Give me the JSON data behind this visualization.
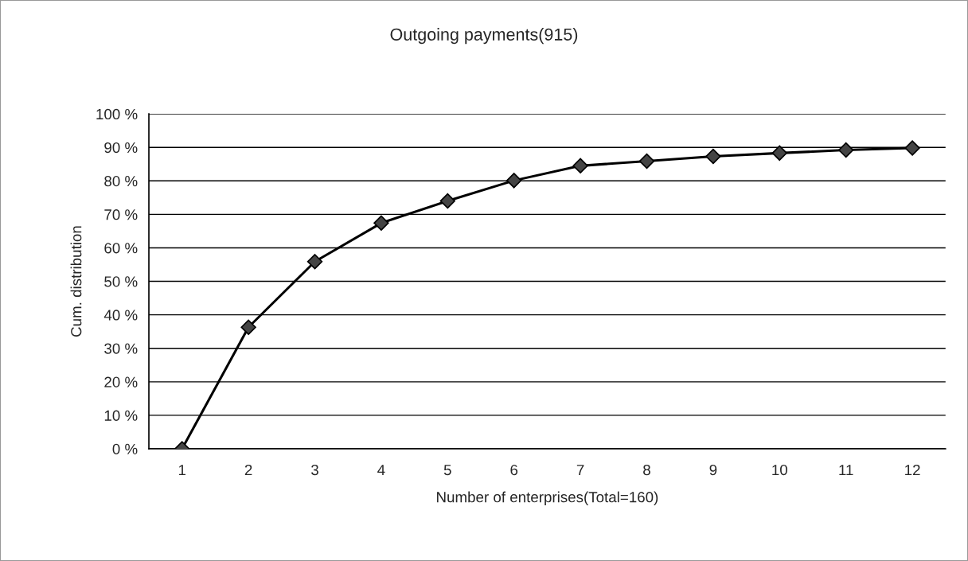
{
  "chart_data": {
    "type": "line",
    "title": "Outgoing payments(915)",
    "xlabel": "Number of enterprises(Total=160)",
    "ylabel": "Cum. distribution",
    "categories": [
      "1",
      "2",
      "3",
      "4",
      "5",
      "6",
      "7",
      "8",
      "9",
      "10",
      "11",
      "12"
    ],
    "series": [
      {
        "color": "#000000",
        "values": [
          0,
          36.3,
          55.9,
          67.4,
          74.0,
          80.1,
          84.5,
          85.9,
          87.3,
          88.3,
          89.2,
          89.8
        ]
      }
    ],
    "ylim": [
      0,
      100
    ],
    "yticks": [
      {
        "value": 0,
        "label": "0 %"
      },
      {
        "value": 10,
        "label": "10 %"
      },
      {
        "value": 20,
        "label": "20 %"
      },
      {
        "value": 30,
        "label": "30 %"
      },
      {
        "value": 40,
        "label": "40 %"
      },
      {
        "value": 50,
        "label": "50 %"
      },
      {
        "value": 60,
        "label": "60 %"
      },
      {
        "value": 70,
        "label": "70 %"
      },
      {
        "value": 80,
        "label": "80 %"
      },
      {
        "value": 90,
        "label": "90 %"
      },
      {
        "value": 100,
        "label": "100 %"
      }
    ],
    "grid": "y",
    "marker": "diamond",
    "line_style": "solid"
  }
}
